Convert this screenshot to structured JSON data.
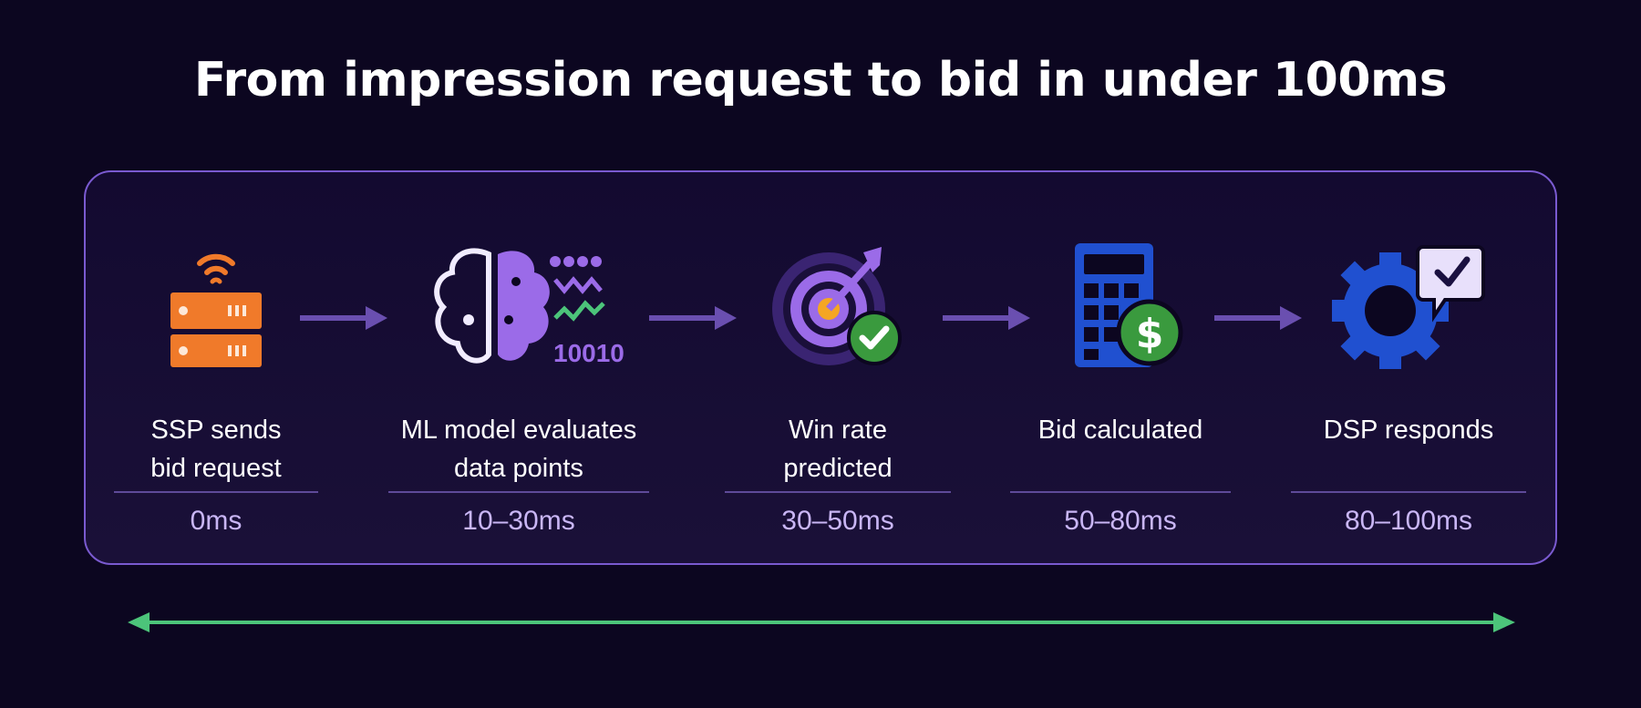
{
  "title": "From impression request to bid in under 100ms",
  "steps": [
    {
      "label_line1": "SSP sends",
      "label_line2": "bid request",
      "time": "0ms",
      "icon": "server-wifi-icon"
    },
    {
      "label_line1": "ML model evaluates",
      "label_line2": "data points",
      "time": "10–30ms",
      "icon": "brain-data-icon",
      "icon_text": "10010"
    },
    {
      "label_line1": "Win rate",
      "label_line2": "predicted",
      "time": "30–50ms",
      "icon": "target-check-icon"
    },
    {
      "label_line1": "Bid calculated",
      "label_line2": "",
      "time": "50–80ms",
      "icon": "calculator-dollar-icon"
    },
    {
      "label_line1": "DSP responds",
      "label_line2": "",
      "time": "80–100ms",
      "icon": "gear-check-message-icon"
    }
  ],
  "colors": {
    "background": "#0c0620",
    "panel_border": "#7a5ad0",
    "arrow": "#6a4fb0",
    "timeline": "#4cc47a",
    "orange": "#f07a2a",
    "purple": "#9b6be8",
    "blue": "#2050d0",
    "green": "#3a9a3e",
    "time_text": "#c9b6f5"
  }
}
